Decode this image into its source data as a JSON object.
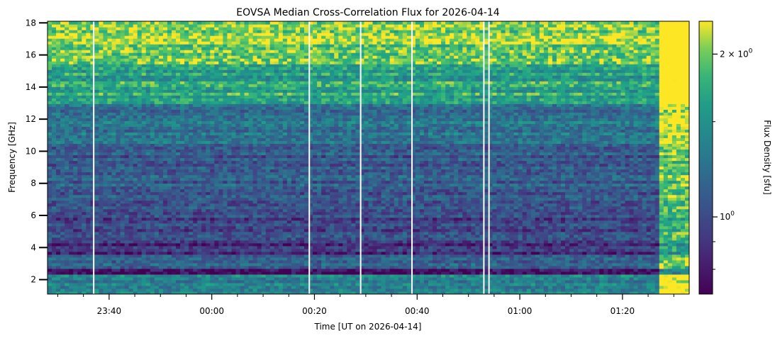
{
  "chart_data": {
    "type": "heatmap",
    "title": "EOVSA Median Cross-Correlation Flux for 2026-04-14",
    "xlabel": "Time [UT on 2026-04-14]",
    "ylabel": "Frequency [GHz]",
    "colorbar_label": "Flux Density [sfu]",
    "colormap": "viridis",
    "colorbar_scale": "log",
    "colorbar_range": [
      0.72,
      2.3
    ],
    "colorbar_ticks": [
      {
        "value": 1.0,
        "label": "10^0"
      },
      {
        "value": 2.0,
        "label": "2 × 10^0"
      }
    ],
    "x_range": [
      "23:28",
      "01:33"
    ],
    "x_ticks": [
      "23:40",
      "00:00",
      "00:20",
      "00:40",
      "01:00",
      "01:20"
    ],
    "y_range": [
      1.1,
      18.1
    ],
    "y_ticks": [
      2,
      4,
      6,
      8,
      10,
      12,
      14,
      16,
      18
    ],
    "gap_times": [
      "23:37",
      "00:19",
      "00:29",
      "00:39",
      "00:53",
      "00:54"
    ],
    "bands": [
      {
        "f_min": 1.1,
        "f_max": 2.4,
        "level": 0.58
      },
      {
        "f_min": 2.4,
        "f_max": 2.7,
        "level": 0.05
      },
      {
        "f_min": 2.7,
        "f_max": 3.6,
        "level": 0.38
      },
      {
        "f_min": 3.6,
        "f_max": 4.4,
        "level": 0.18
      },
      {
        "f_min": 4.4,
        "f_max": 6.0,
        "level": 0.28
      },
      {
        "f_min": 6.0,
        "f_max": 7.5,
        "level": 0.3
      },
      {
        "f_min": 7.5,
        "f_max": 10.5,
        "level": 0.36
      },
      {
        "f_min": 10.5,
        "f_max": 13.0,
        "level": 0.48
      },
      {
        "f_min": 13.0,
        "f_max": 15.5,
        "level": 0.72
      },
      {
        "f_min": 15.5,
        "f_max": 18.1,
        "level": 0.9
      }
    ],
    "grid": false
  },
  "colors": {
    "viridis_low": "#440154",
    "viridis_mid": "#21908d",
    "viridis_high": "#fde725"
  }
}
